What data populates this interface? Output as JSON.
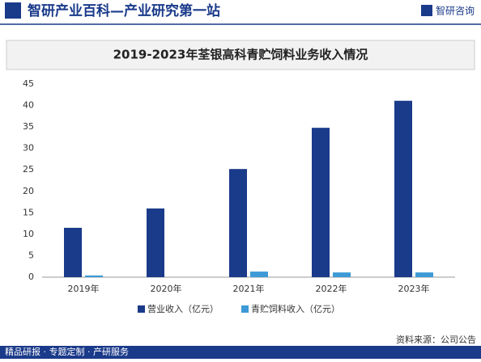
{
  "header": {
    "title": "智研产业百科—产业研究第一站",
    "logo": "智研咨询"
  },
  "chart_data": {
    "type": "bar",
    "title": "2019-2023年荃银高科青贮饲料业务收入情况",
    "categories": [
      "2019年",
      "2020年",
      "2021年",
      "2022年",
      "2023年"
    ],
    "series": [
      {
        "name": "营业收入（亿元）",
        "color": "#1a3a8a",
        "values": [
          11.5,
          16,
          25.2,
          34.8,
          41.1
        ]
      },
      {
        "name": "青贮饲料收入（亿元）",
        "color": "#3d9ad6",
        "values": [
          0.4,
          0,
          1.3,
          1.1,
          1.1
        ]
      }
    ],
    "ylim": [
      0,
      45
    ],
    "yticks": [
      0,
      5,
      10,
      15,
      20,
      25,
      30,
      35,
      40,
      45
    ],
    "grid": false,
    "legend": "bottom",
    "source": "资料来源：公司公告"
  },
  "footer": {
    "text": "精品研报 · 专题定制 · 产研服务"
  }
}
